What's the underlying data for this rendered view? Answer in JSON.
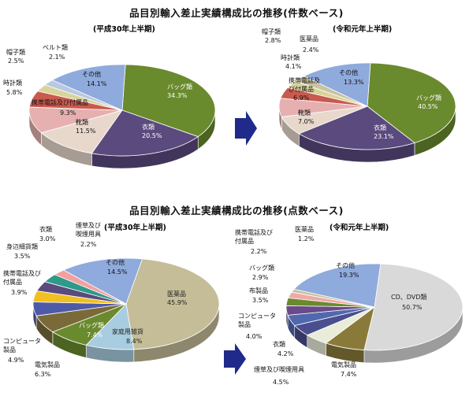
{
  "sections": [
    {
      "title": "品目別輸入差止実績構成比の推移(件数ベース)"
    },
    {
      "title": "品目別輸入差止実績構成比の推移(点数ベース)"
    }
  ],
  "chart_data": [
    {
      "type": "pie",
      "title": "(平成30年上半期)",
      "slices": [
        {
          "name": "バッグ類",
          "value": 34.3,
          "label": "34.3%",
          "color": "#6a8a2e"
        },
        {
          "name": "衣類",
          "value": 20.5,
          "label": "20.5%",
          "color": "#5b4a7e"
        },
        {
          "name": "靴類",
          "value": 11.5,
          "label": "11.5%",
          "color": "#e8d8cc"
        },
        {
          "name": "携帯電話及び付属品",
          "value": 9.3,
          "label": "9.3%",
          "color": "#e6b0b0"
        },
        {
          "name": "時計類",
          "value": 5.8,
          "label": "5.8%",
          "color": "#c85a4e"
        },
        {
          "name": "帽子類",
          "value": 2.5,
          "label": "2.5%",
          "color": "#d8d49a"
        },
        {
          "name": "ベルト類",
          "value": 2.1,
          "label": "2.1%",
          "color": "#b8c8e0"
        },
        {
          "name": "その他",
          "value": 14.1,
          "label": "14.1%",
          "color": "#8faadc"
        }
      ]
    },
    {
      "type": "pie",
      "title": "(令和元年上半期)",
      "slices": [
        {
          "name": "バッグ類",
          "value": 40.5,
          "label": "40.5%",
          "color": "#6a8a2e"
        },
        {
          "name": "衣類",
          "value": 23.1,
          "label": "23.1%",
          "color": "#5b4a7e"
        },
        {
          "name": "靴類",
          "value": 7.0,
          "label": "7.0%",
          "color": "#e8d8cc"
        },
        {
          "name": "携帯電話及び付属品",
          "value": 6.9,
          "label": "6.9%",
          "color": "#e6b0b0"
        },
        {
          "name": "時計類",
          "value": 4.1,
          "label": "4.1%",
          "color": "#c85a4e"
        },
        {
          "name": "帽子類",
          "value": 2.8,
          "label": "2.8%",
          "color": "#d8d49a"
        },
        {
          "name": "医薬品",
          "value": 2.4,
          "label": "2.4%",
          "color": "#c9c3a0"
        },
        {
          "name": "その他",
          "value": 13.3,
          "label": "13.3%",
          "color": "#8faadc"
        }
      ]
    },
    {
      "type": "pie",
      "title": "(平成30年上半期)",
      "slices": [
        {
          "name": "医薬品",
          "value": 45.9,
          "label": "45.9%",
          "color": "#c4bd97"
        },
        {
          "name": "家庭用雑貨",
          "value": 8.4,
          "label": "8.4%",
          "color": "#a8cce0"
        },
        {
          "name": "バッグ類",
          "value": 7.4,
          "label": "7.4%",
          "color": "#6a8a2e"
        },
        {
          "name": "電気製品",
          "value": 6.3,
          "label": "6.3%",
          "color": "#7a6a3a"
        },
        {
          "name": "コンピュータ製品",
          "value": 4.9,
          "label": "4.9%",
          "color": "#4e5aa8"
        },
        {
          "name": "携帯電話及び付属品",
          "value": 3.9,
          "label": "3.9%",
          "color": "#f0c020"
        },
        {
          "name": "身辺細貨類",
          "value": 3.5,
          "label": "3.5%",
          "color": "#5b4a7e"
        },
        {
          "name": "衣類",
          "value": 3.0,
          "label": "3.0%",
          "color": "#2e9a8a"
        },
        {
          "name": "煙草及び喫煙用具",
          "value": 2.2,
          "label": "2.2%",
          "color": "#f4a0a0"
        },
        {
          "name": "その他",
          "value": 14.5,
          "label": "14.5%",
          "color": "#8faadc"
        }
      ]
    },
    {
      "type": "pie",
      "title": "(令和元年上半期)",
      "slices": [
        {
          "name": "CD、DVD類",
          "value": 50.7,
          "label": "50.7%",
          "color": "#d9d9d9"
        },
        {
          "name": "電気製品",
          "value": 7.4,
          "label": "7.4%",
          "color": "#8a7a3a"
        },
        {
          "name": "煙草及び喫煙用具",
          "value": 4.5,
          "label": "4.5%",
          "color": "#e8ecd8"
        },
        {
          "name": "衣類",
          "value": 4.2,
          "label": "4.2%",
          "color": "#4a4e8e"
        },
        {
          "name": "コンピュータ製品",
          "value": 4.0,
          "label": "4.0%",
          "color": "#5068b0"
        },
        {
          "name": "布製品",
          "value": 3.5,
          "label": "3.5%",
          "color": "#6a4a8a"
        },
        {
          "name": "バッグ類",
          "value": 2.9,
          "label": "2.9%",
          "color": "#6a8a2e"
        },
        {
          "name": "携帯電話及び付属品",
          "value": 2.2,
          "label": "2.2%",
          "color": "#f0a8a8"
        },
        {
          "name": "医薬品",
          "value": 1.2,
          "label": "1.2%",
          "color": "#c9c3a0"
        },
        {
          "name": "その他",
          "value": 19.3,
          "label": "19.3%",
          "color": "#8faadc"
        }
      ]
    }
  ],
  "arrow_color": "#1f2a8a"
}
